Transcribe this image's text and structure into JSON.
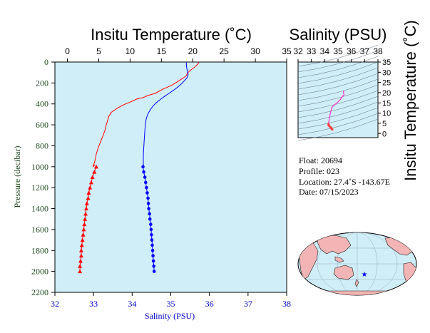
{
  "main_plot": {
    "top_title": "Insitu Temperature (˚C)",
    "bottom_xlabel": "Salinity (PSU)",
    "ylabel": "Pressure (decibar)",
    "temp_ticks": [
      "0",
      "5",
      "10",
      "15",
      "20",
      "25",
      "30",
      "35"
    ],
    "sal_ticks": [
      "32",
      "33",
      "34",
      "35",
      "36",
      "37",
      "38"
    ],
    "pres_ticks": [
      "0",
      "200",
      "400",
      "600",
      "800",
      "1000",
      "1200",
      "1400",
      "1600",
      "1800",
      "2000",
      "2200"
    ]
  },
  "ts_plot": {
    "top_title": "Salinity (PSU)",
    "right_title": "Insitu Temperature (˚C)",
    "sal_ticks": [
      "32",
      "33",
      "34",
      "35",
      "36",
      "37",
      "38"
    ],
    "temp_ticks": [
      "0",
      "5",
      "10",
      "15",
      "20",
      "25",
      "30",
      "35"
    ]
  },
  "info": {
    "float": "Float:  20694",
    "profile": "Profile:  023",
    "location": "Location:  27.4˚S  -143.67E",
    "date": "Date:  07/15/2023"
  },
  "colors": {
    "temperature": "#ff0000",
    "salinity": "#0000ff",
    "background": "#d0eef7",
    "ts_line": "#ff33cc",
    "land": "#f2b4b4",
    "marker": "#0000ff"
  },
  "chart_data": [
    {
      "type": "line",
      "ylabel": "Pressure (decibar)",
      "ylim": [
        2200,
        0
      ],
      "x_top_label": "Insitu Temperature (˚C)",
      "x_top_lim": [
        -2,
        35
      ],
      "x_bottom_label": "Salinity (PSU)",
      "x_bottom_lim": [
        32,
        38
      ],
      "series": [
        {
          "name": "Insitu Temperature (˚C)",
          "axis": "top",
          "color": "#ff0000",
          "points": [
            [
              21.0,
              5
            ],
            [
              20.8,
              20
            ],
            [
              20.3,
              50
            ],
            [
              19.6,
              80
            ],
            [
              19.1,
              110
            ],
            [
              19.0,
              130
            ],
            [
              18.3,
              160
            ],
            [
              17.5,
              190
            ],
            [
              16.7,
              220
            ],
            [
              15.2,
              260
            ],
            [
              14.0,
              300
            ],
            [
              12.8,
              320
            ],
            [
              12.1,
              340
            ],
            [
              11.2,
              350
            ],
            [
              10.1,
              380
            ],
            [
              8.9,
              410
            ],
            [
              8.0,
              440
            ],
            [
              7.0,
              480
            ],
            [
              6.6,
              520
            ],
            [
              6.4,
              560
            ],
            [
              6.2,
              600
            ],
            [
              6.0,
              650
            ],
            [
              5.7,
              700
            ],
            [
              5.3,
              760
            ],
            [
              4.9,
              820
            ],
            [
              4.6,
              880
            ],
            [
              4.4,
              940
            ],
            [
              4.1,
              1000
            ],
            [
              4.4,
              980
            ]
          ],
          "markers": [
            [
              4.6,
              1000
            ],
            [
              4.3,
              1050
            ],
            [
              4.0,
              1100
            ],
            [
              3.8,
              1150
            ],
            [
              3.6,
              1200
            ],
            [
              3.4,
              1250
            ],
            [
              3.3,
              1300
            ],
            [
              3.1,
              1350
            ],
            [
              3.0,
              1400
            ],
            [
              2.9,
              1450
            ],
            [
              2.8,
              1500
            ],
            [
              2.7,
              1550
            ],
            [
              2.6,
              1600
            ],
            [
              2.5,
              1650
            ],
            [
              2.4,
              1700
            ],
            [
              2.3,
              1750
            ],
            [
              2.2,
              1800
            ],
            [
              2.2,
              1850
            ],
            [
              2.1,
              1900
            ],
            [
              2.0,
              1950
            ],
            [
              2.0,
              2000
            ]
          ]
        },
        {
          "name": "Salinity (PSU)",
          "axis": "bottom",
          "color": "#0000ff",
          "points": [
            [
              35.4,
              5
            ],
            [
              35.41,
              50
            ],
            [
              35.43,
              90
            ],
            [
              35.45,
              120
            ],
            [
              35.42,
              150
            ],
            [
              35.35,
              180
            ],
            [
              35.27,
              210
            ],
            [
              35.18,
              240
            ],
            [
              35.07,
              270
            ],
            [
              34.95,
              300
            ],
            [
              34.83,
              330
            ],
            [
              34.72,
              360
            ],
            [
              34.62,
              390
            ],
            [
              34.54,
              420
            ],
            [
              34.48,
              450
            ],
            [
              34.43,
              480
            ],
            [
              34.39,
              510
            ],
            [
              34.36,
              550
            ],
            [
              34.34,
              600
            ],
            [
              34.33,
              650
            ],
            [
              34.32,
              700
            ],
            [
              34.31,
              760
            ],
            [
              34.3,
              820
            ],
            [
              34.29,
              880
            ],
            [
              34.29,
              940
            ],
            [
              34.29,
              1000
            ]
          ],
          "markers": [
            [
              34.28,
              1000
            ],
            [
              34.3,
              1050
            ],
            [
              34.33,
              1100
            ],
            [
              34.35,
              1150
            ],
            [
              34.37,
              1200
            ],
            [
              34.39,
              1250
            ],
            [
              34.41,
              1300
            ],
            [
              34.42,
              1350
            ],
            [
              34.43,
              1400
            ],
            [
              34.45,
              1450
            ],
            [
              34.46,
              1500
            ],
            [
              34.48,
              1550
            ],
            [
              34.49,
              1600
            ],
            [
              34.5,
              1650
            ],
            [
              34.51,
              1700
            ],
            [
              34.52,
              1750
            ],
            [
              34.53,
              1800
            ],
            [
              34.54,
              1850
            ],
            [
              34.55,
              1900
            ],
            [
              34.56,
              1950
            ],
            [
              34.57,
              2000
            ]
          ]
        }
      ]
    },
    {
      "type": "scatter",
      "xlabel": "Salinity (PSU)",
      "ylabel": "Insitu Temperature (˚C)",
      "xlim": [
        32,
        38
      ],
      "ylim": [
        -2,
        35
      ],
      "series": [
        {
          "name": "T-S profile",
          "color": "#ff33cc",
          "points": [
            [
              35.4,
              21.0
            ],
            [
              35.43,
              19.6
            ],
            [
              35.45,
              19.0
            ],
            [
              35.35,
              18.3
            ],
            [
              35.18,
              16.7
            ],
            [
              34.95,
              15.2
            ],
            [
              34.72,
              14.0
            ],
            [
              34.54,
              12.8
            ],
            [
              34.43,
              10.1
            ],
            [
              34.36,
              8.0
            ],
            [
              34.33,
              6.6
            ],
            [
              34.31,
              6.0
            ],
            [
              34.3,
              5.3
            ],
            [
              34.29,
              4.6
            ],
            [
              34.29,
              4.1
            ],
            [
              34.33,
              3.8
            ],
            [
              34.39,
              3.4
            ],
            [
              34.45,
              3.0
            ],
            [
              34.5,
              2.6
            ],
            [
              34.54,
              2.2
            ],
            [
              34.57,
              2.0
            ]
          ]
        }
      ]
    }
  ]
}
